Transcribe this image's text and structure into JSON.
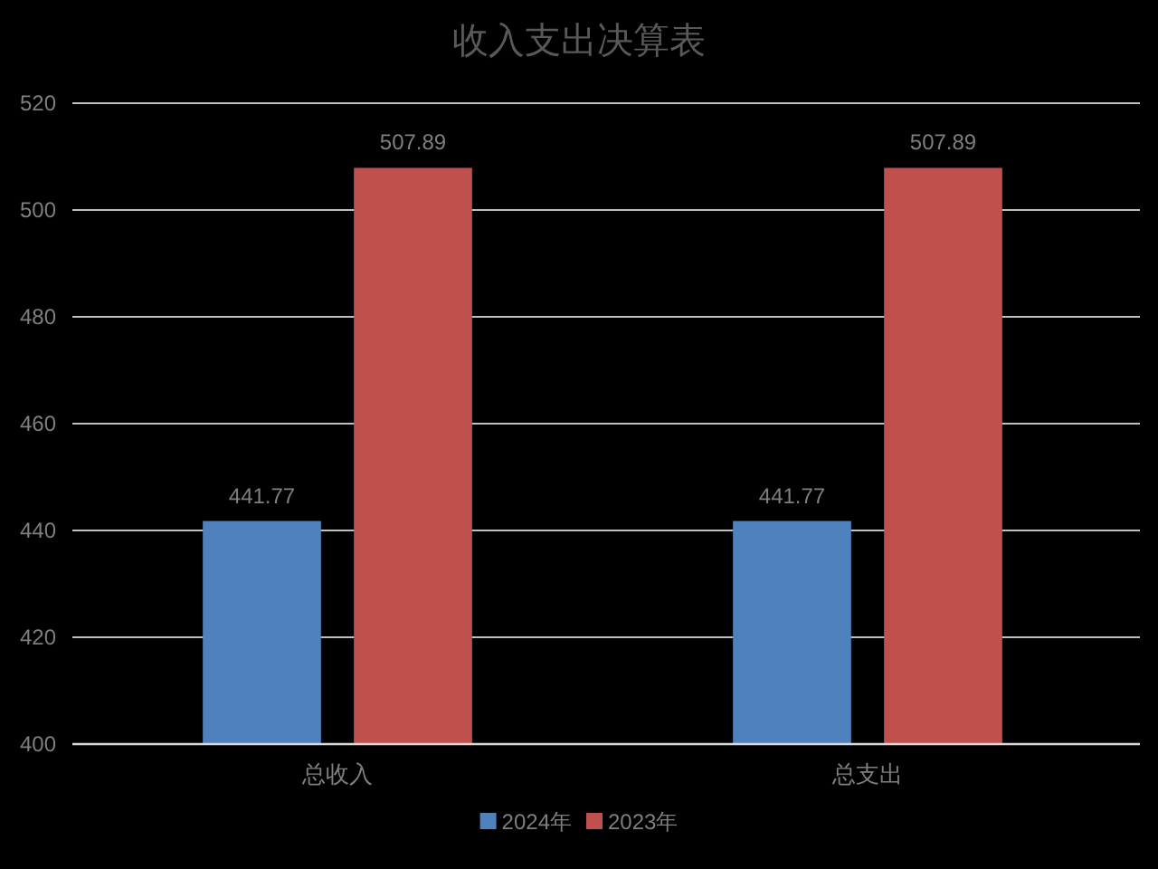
{
  "chart_data": {
    "type": "bar",
    "title": "收入支出决算表",
    "categories": [
      "总收入",
      "总支出"
    ],
    "series": [
      {
        "name": "2024年",
        "color": "#4f81bd",
        "values": [
          441.77,
          441.77
        ]
      },
      {
        "name": "2023年",
        "color": "#c0504d",
        "values": [
          507.89,
          507.89
        ]
      }
    ],
    "ylim": [
      400,
      520
    ],
    "yticks": [
      400,
      420,
      440,
      460,
      480,
      500,
      520
    ],
    "grid": "y",
    "legend": "bottom",
    "data_labels": true
  }
}
